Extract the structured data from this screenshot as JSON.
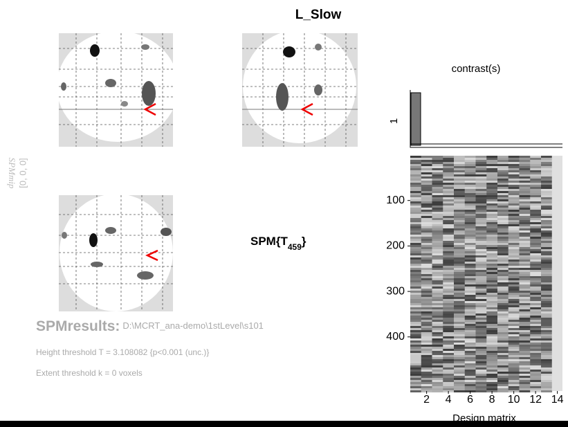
{
  "title": "L_Slow",
  "mip": {
    "label": "SPMmip",
    "coords": "[0, 0, 0]"
  },
  "statistic": {
    "text": "SPM{T",
    "subscript": "459",
    "close": "}"
  },
  "contrast": {
    "title": "contrast(s)",
    "label": "1"
  },
  "design_matrix": {
    "label": "Design matrix",
    "yticks": [
      100,
      200,
      300,
      400
    ],
    "xticks": [
      2,
      4,
      6,
      8,
      10,
      12,
      14
    ]
  },
  "results": {
    "heading": "SPMresults:",
    "path": "D:\\MCRT_ana-demo\\1stLevel\\s101",
    "height": "Height threshold T = 3.108082  {p<0.001 (unc.)}",
    "extent": "Extent threshold k = 0 voxels"
  }
}
